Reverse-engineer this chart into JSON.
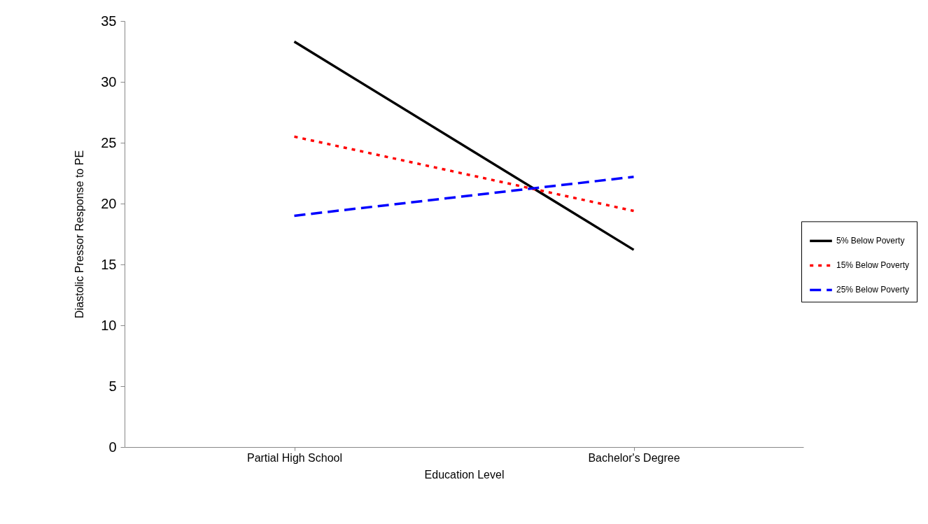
{
  "chart_data": {
    "type": "line",
    "xlabel": "Education Level",
    "ylabel": "Diastolic Pressor Response to PE",
    "categories": [
      "Partial High School",
      "Bachelor's Degree"
    ],
    "series": [
      {
        "name": "5% Below Poverty",
        "color": "#000000",
        "line_style": "solid",
        "values": [
          33.3,
          16.2
        ]
      },
      {
        "name": "15% Below Poverty",
        "color": "#ff0000",
        "line_style": "dotted",
        "values": [
          25.5,
          19.4
        ]
      },
      {
        "name": "25% Below Poverty",
        "color": "#0000ff",
        "line_style": "dashed",
        "values": [
          19.0,
          22.2
        ]
      }
    ],
    "ylim": [
      0,
      35
    ],
    "yticks": [
      0,
      5,
      10,
      15,
      20,
      25,
      30,
      35
    ],
    "grid": false,
    "legend": "right",
    "marker": "none"
  }
}
